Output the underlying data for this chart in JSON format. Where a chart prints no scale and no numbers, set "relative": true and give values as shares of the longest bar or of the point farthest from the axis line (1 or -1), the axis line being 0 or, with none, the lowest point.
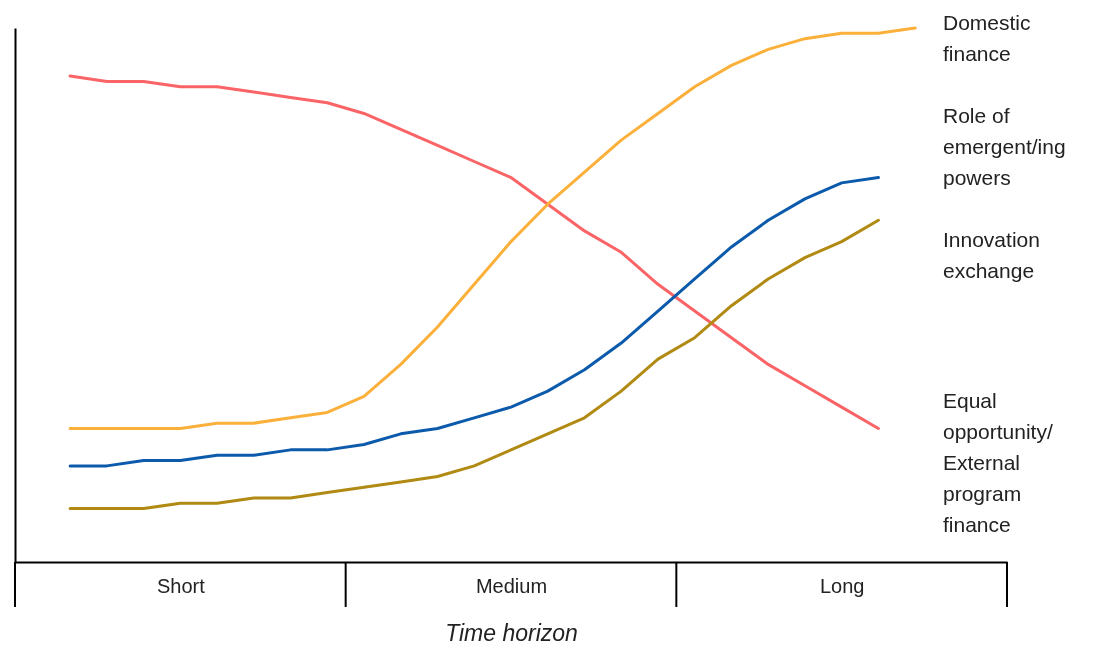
{
  "chart_data": {
    "type": "line",
    "relative": true,
    "xlabel": "Time horizon",
    "categories": [
      null,
      null,
      null,
      null,
      "Short",
      null,
      null,
      null,
      null,
      null,
      null,
      null,
      null,
      "Medium",
      null,
      null,
      null,
      null,
      null,
      null,
      null,
      null,
      "Long",
      null,
      null,
      null,
      null
    ],
    "series": [
      {
        "name": "Equal opportunity/External program finance",
        "color": "#fb6467",
        "values": [
          null,
          0.91,
          0.9,
          0.9,
          0.89,
          0.89,
          0.88,
          0.87,
          0.86,
          0.84,
          0.81,
          0.78,
          0.75,
          0.72,
          0.67,
          0.62,
          0.58,
          0.52,
          0.47,
          0.42,
          0.37,
          0.33,
          0.29,
          0.25,
          null,
          null,
          null
        ]
      },
      {
        "name": "Domestic finance",
        "color": "#fbb03b",
        "values": [
          null,
          0.25,
          0.25,
          0.25,
          0.25,
          0.26,
          0.26,
          0.27,
          0.28,
          0.31,
          0.37,
          0.44,
          0.52,
          0.6,
          0.67,
          0.73,
          0.79,
          0.84,
          0.89,
          0.93,
          0.96,
          0.98,
          0.99,
          0.99,
          1.0,
          null,
          null
        ]
      },
      {
        "name": "Role of emergent/ing powers",
        "color": "#0b5aab",
        "values": [
          null,
          0.18,
          0.18,
          0.19,
          0.19,
          0.2,
          0.2,
          0.21,
          0.21,
          0.22,
          0.24,
          0.25,
          0.27,
          0.29,
          0.32,
          0.36,
          0.41,
          0.47,
          0.53,
          0.59,
          0.64,
          0.68,
          0.71,
          0.72,
          null,
          null,
          null
        ]
      },
      {
        "name": "Innovation exchange",
        "color": "#b08a12",
        "values": [
          null,
          0.1,
          0.1,
          0.1,
          0.11,
          0.11,
          0.12,
          0.12,
          0.13,
          0.14,
          0.15,
          0.16,
          0.18,
          0.21,
          0.24,
          0.27,
          0.32,
          0.38,
          0.42,
          0.48,
          0.53,
          0.57,
          0.6,
          0.64,
          null,
          null,
          null
        ]
      }
    ]
  }
}
